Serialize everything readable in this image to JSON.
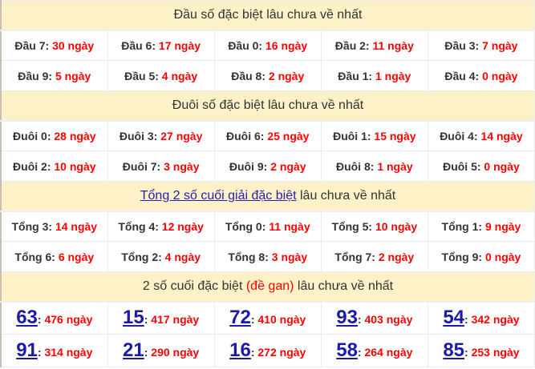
{
  "sections": [
    {
      "title": "Đầu số đặc biệt lâu chưa về nhất",
      "rows": [
        [
          {
            "label": "Đầu 7:",
            "value": "30 ngày"
          },
          {
            "label": "Đầu 6:",
            "value": "17 ngày"
          },
          {
            "label": "Đầu 0:",
            "value": "16 ngày"
          },
          {
            "label": "Đầu 2:",
            "value": "11 ngày"
          },
          {
            "label": "Đầu 3:",
            "value": "7 ngày"
          }
        ],
        [
          {
            "label": "Đầu 9:",
            "value": "5 ngày"
          },
          {
            "label": "Đầu 5:",
            "value": "4 ngày"
          },
          {
            "label": "Đầu 8:",
            "value": "2 ngày"
          },
          {
            "label": "Đầu 1:",
            "value": "1 ngày"
          },
          {
            "label": "Đầu 4:",
            "value": "0 ngày"
          }
        ]
      ]
    },
    {
      "title": "Đuôi số đặc biệt lâu chưa về nhất",
      "rows": [
        [
          {
            "label": "Đuôi 0:",
            "value": "28 ngày"
          },
          {
            "label": "Đuôi 3:",
            "value": "27 ngày"
          },
          {
            "label": "Đuôi 6:",
            "value": "25 ngày"
          },
          {
            "label": "Đuôi 1:",
            "value": "15 ngày"
          },
          {
            "label": "Đuôi 4:",
            "value": "14 ngày"
          }
        ],
        [
          {
            "label": "Đuôi 2:",
            "value": "10 ngày"
          },
          {
            "label": "Đuôi 7:",
            "value": "3 ngày"
          },
          {
            "label": "Đuôi 9:",
            "value": "2 ngày"
          },
          {
            "label": "Đuôi 8:",
            "value": "1 ngày"
          },
          {
            "label": "Đuôi 5:",
            "value": "0 ngày"
          }
        ]
      ]
    },
    {
      "title_link": "Tổng 2 số cuối giải đặc biệt",
      "title_rest": " lâu chưa về nhất",
      "rows": [
        [
          {
            "label": "Tổng 3:",
            "value": "14 ngày"
          },
          {
            "label": "Tổng 4:",
            "value": "12 ngày"
          },
          {
            "label": "Tổng 0:",
            "value": "11 ngày"
          },
          {
            "label": "Tổng 5:",
            "value": "10 ngày"
          },
          {
            "label": "Tổng 1:",
            "value": "9 ngày"
          }
        ],
        [
          {
            "label": "Tổng 6:",
            "value": "6 ngày"
          },
          {
            "label": "Tổng 2:",
            "value": "4 ngày"
          },
          {
            "label": "Tổng 8:",
            "value": "3 ngày"
          },
          {
            "label": "Tổng 7:",
            "value": "2 ngày"
          },
          {
            "label": "Tổng 9:",
            "value": "0 ngày"
          }
        ]
      ]
    },
    {
      "title_a": "2 số cuối đặc biệt ",
      "title_red": "(đề gan)",
      "title_b": " lâu chưa về nhất",
      "rows": [
        [
          {
            "num": "63",
            "value": "476 ngày"
          },
          {
            "num": "15",
            "value": "417 ngày"
          },
          {
            "num": "72",
            "value": "410 ngày"
          },
          {
            "num": "93",
            "value": "403 ngày"
          },
          {
            "num": "54",
            "value": "342 ngày"
          }
        ],
        [
          {
            "num": "91",
            "value": "314 ngày"
          },
          {
            "num": "21",
            "value": "290 ngày"
          },
          {
            "num": "16",
            "value": "272 ngày"
          },
          {
            "num": "58",
            "value": "264 ngày"
          },
          {
            "num": "85",
            "value": "253 ngày"
          }
        ]
      ]
    }
  ],
  "colors": {
    "header_bg": "#fdf1c8",
    "value": "#ff0000",
    "number_link": "#1b1ba8"
  }
}
